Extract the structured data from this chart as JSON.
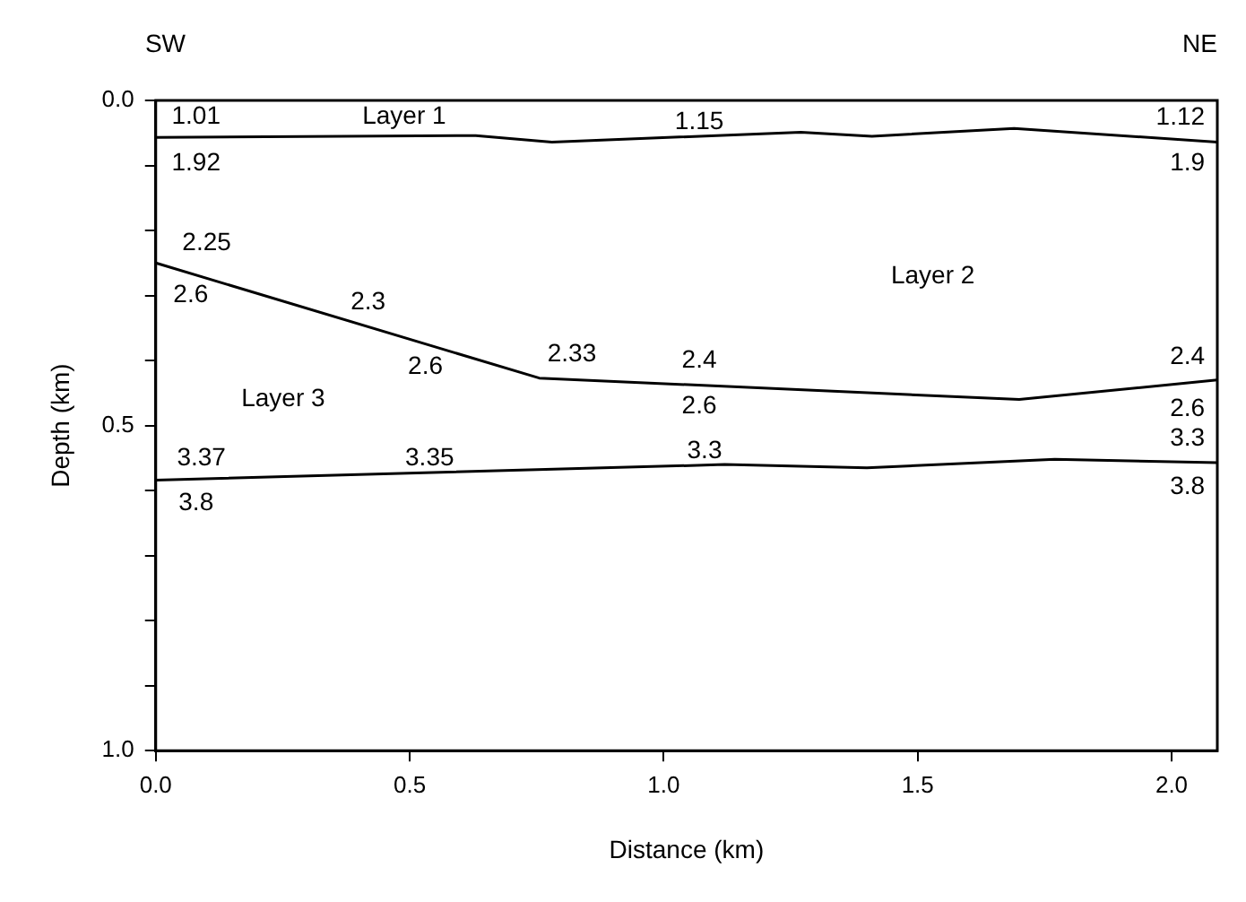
{
  "chart_data": {
    "type": "line",
    "xlabel": "Distance (km)",
    "ylabel": "Depth (km)",
    "xlim": [
      0,
      2.09
    ],
    "ylim": [
      1.0,
      0.0
    ],
    "xticks": [
      {
        "value": 0,
        "label": "0.0"
      },
      0.5,
      {
        "value": 1,
        "label": "1.0"
      },
      1.5,
      {
        "value": 2,
        "label": "2.0"
      }
    ],
    "yticks": [
      {
        "value": 0,
        "label": "0.0"
      },
      {
        "value": 0.1,
        "label": null
      },
      {
        "value": 0.2,
        "label": null
      },
      {
        "value": 0.3,
        "label": null
      },
      {
        "value": 0.4,
        "label": null
      },
      0.5,
      {
        "value": 0.6,
        "label": null
      },
      {
        "value": 0.7,
        "label": null
      },
      {
        "value": 0.8,
        "label": null
      },
      {
        "value": 0.9,
        "label": null
      },
      {
        "value": 1,
        "label": "1.0"
      }
    ],
    "grid": false,
    "legend": false,
    "marker": "none",
    "line_style": "solid",
    "series": [
      {
        "color": "#000000",
        "x": [
          0,
          0.63,
          0.78,
          1.27,
          1.41,
          1.69,
          2.09
        ],
        "values": [
          0.057,
          0.054,
          0.064,
          0.049,
          0.055,
          0.043,
          0.064
        ]
      },
      {
        "color": "#000000",
        "x": [
          0,
          0.755,
          1.7,
          2.09
        ],
        "values": [
          0.25,
          0.427,
          0.46,
          0.43
        ]
      },
      {
        "color": "#000000",
        "x": [
          0,
          1.12,
          1.4,
          1.77,
          2.09
        ],
        "values": [
          0.584,
          0.56,
          0.565,
          0.552,
          0.557
        ]
      }
    ],
    "annotations": [
      "SW",
      "NE",
      "1.01",
      "Layer 1",
      "1.15",
      "1.12",
      "1.92",
      "1.9",
      "2.25",
      "2.6",
      "2.3",
      "Layer 2",
      "2.6",
      "2.33",
      "2.4",
      "2.4",
      "Layer 3",
      "2.6",
      "2.6",
      "3.3",
      "3.37",
      "3.35",
      "3.3",
      "3.8",
      "3.8"
    ]
  }
}
